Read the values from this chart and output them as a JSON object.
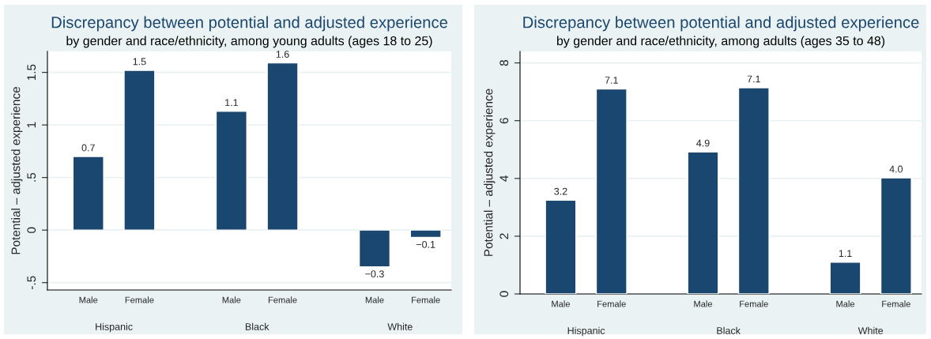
{
  "chart_data": [
    {
      "type": "bar",
      "title": "Discrepancy between potential and adjusted experience",
      "subtitle": "by gender and race/ethnicity, among young adults (ages 18 to 25)",
      "ylabel": "Potential – adjusted experience",
      "categories": [
        "Male",
        "Female",
        "Male",
        "Female",
        "Male",
        "Female"
      ],
      "values": [
        0.7,
        1.52,
        1.13,
        1.59,
        -0.35,
        -0.07
      ],
      "value_labels": [
        "0.7",
        "1.5",
        "1.1",
        "1.6",
        "−0.3",
        "−0.1"
      ],
      "color": "#1a476f",
      "ylim": [
        -0.57,
        1.7
      ],
      "yticks": [
        {
          "value": -0.5,
          "label": "-.5"
        },
        0,
        {
          "value": 0.5,
          "label": ".5"
        },
        1,
        1.5
      ],
      "grid": "y",
      "annotations": [
        "Hispanic",
        "Black",
        "White"
      ]
    },
    {
      "type": "bar",
      "title": "Discrepancy between potential and adjusted experience",
      "subtitle": "by gender and race/ethnicity, among adults (ages 35 to 48)",
      "ylabel": "Potential – adjusted experience",
      "categories": [
        "Male",
        "Female",
        "Male",
        "Female",
        "Male",
        "Female"
      ],
      "values": [
        3.25,
        7.1,
        4.92,
        7.14,
        1.1,
        4.02
      ],
      "value_labels": [
        "3.2",
        "7.1",
        "4.9",
        "7.1",
        "1.1",
        "4.0"
      ],
      "color": "#1a476f",
      "ylim": [
        0,
        8.4
      ],
      "yticks": [
        0,
        2,
        4,
        6,
        8
      ],
      "grid": "y",
      "annotations": [
        "Hispanic",
        "Black",
        "White"
      ]
    }
  ]
}
